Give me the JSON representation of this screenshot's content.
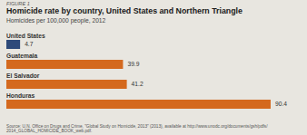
{
  "chart_data": {
    "type": "bar",
    "orientation": "horizontal",
    "title": "Homicide rate by country, United States and Northern Triangle",
    "subtitle": "Homicides per 100,000 people, 2012",
    "annotations": [
      "FIGURE 1",
      "Source: U.N. Office on Drugs and Crime, \"Global Study on Homicide, 2013\" (2013), available at http://www.unodc.org/documents/gsh/pdfs/\n2014_GLOBAL_HOMICIDE_BOOK_web.pdf."
    ],
    "categories": [
      "United States",
      "Guatemala",
      "El Salvador",
      "Honduras"
    ],
    "values": [
      4.7,
      39.9,
      41.2,
      90.4
    ],
    "colors": [
      "#2e4a7a",
      "#d4691e",
      "#d4691e",
      "#d4691e"
    ],
    "xlim": [
      0,
      96
    ],
    "xticks": [],
    "tick_labels": false,
    "grid": false,
    "data_labels": true
  }
}
